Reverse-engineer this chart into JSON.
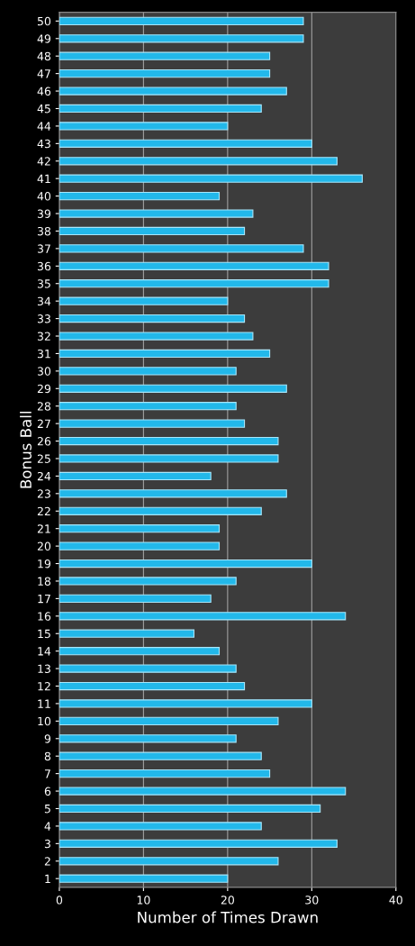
{
  "chart_data": {
    "type": "bar",
    "orientation": "horizontal",
    "xlabel": "Number of Times Drawn",
    "ylabel": "Bonus Ball",
    "categories": [
      "50",
      "49",
      "48",
      "47",
      "46",
      "45",
      "44",
      "43",
      "42",
      "41",
      "40",
      "39",
      "38",
      "37",
      "36",
      "35",
      "34",
      "33",
      "32",
      "31",
      "30",
      "29",
      "28",
      "27",
      "26",
      "25",
      "24",
      "23",
      "22",
      "21",
      "20",
      "19",
      "18",
      "17",
      "16",
      "15",
      "14",
      "13",
      "12",
      "11",
      "10",
      "9",
      "8",
      "7",
      "6",
      "5",
      "4",
      "3",
      "2",
      "1"
    ],
    "values": [
      29,
      29,
      25,
      25,
      27,
      24,
      20,
      30,
      33,
      36,
      19,
      23,
      22,
      29,
      32,
      32,
      20,
      22,
      23,
      25,
      21,
      27,
      21,
      22,
      26,
      26,
      18,
      27,
      24,
      19,
      19,
      30,
      21,
      18,
      34,
      16,
      19,
      21,
      22,
      30,
      26,
      21,
      24,
      25,
      34,
      31,
      24,
      33,
      26,
      20
    ],
    "color": "#22b8ea",
    "xlim": [
      0,
      40
    ],
    "xticks": [
      0,
      10,
      20,
      30,
      40
    ],
    "grid": "x"
  }
}
